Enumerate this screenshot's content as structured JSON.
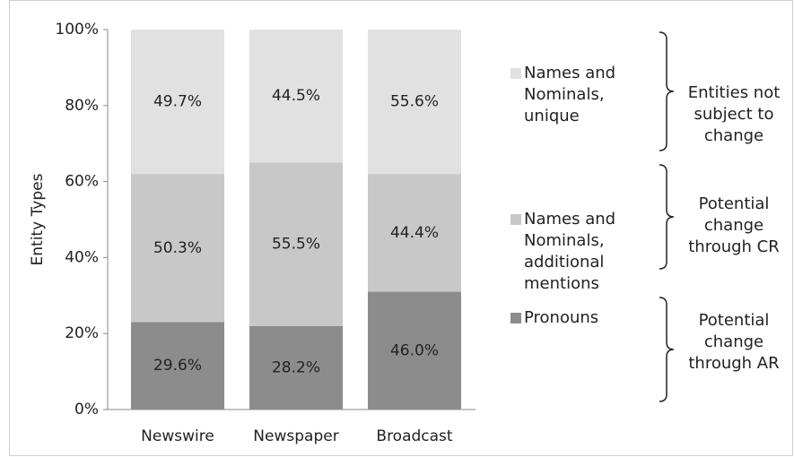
{
  "chart_data": {
    "type": "stacked_bar",
    "y_label": "Entity Types",
    "categories": [
      "Newswire",
      "Newspaper",
      "Broadcast"
    ],
    "series": [
      {
        "name": "Pronouns",
        "color": "#8c8c8c",
        "values": [
          23,
          22,
          31
        ],
        "labels": [
          "29.6%",
          "28.2%",
          "46.0%"
        ]
      },
      {
        "name": "Names and Nominals, additional mentions",
        "color": "#c8c8c8",
        "values": [
          39,
          43,
          31
        ],
        "labels": [
          "50.3%",
          "55.5%",
          "44.4%"
        ]
      },
      {
        "name": "Names and Nominals, unique",
        "color": "#e1e1e1",
        "values": [
          38,
          35,
          38
        ],
        "labels": [
          "49.7%",
          "44.5%",
          "55.6%"
        ]
      }
    ],
    "annotations": [
      "Entities not subject to change",
      "Potential change through CR",
      "Potential change through AR"
    ],
    "ylim": [
      0,
      100
    ],
    "yticks": [
      {
        "value": 0,
        "label": "0%"
      },
      {
        "value": 20,
        "label": "20%"
      },
      {
        "value": 40,
        "label": "40%"
      },
      {
        "value": 60,
        "label": "60%"
      },
      {
        "value": 80,
        "label": "80%"
      },
      {
        "value": 100,
        "label": "100%"
      }
    ],
    "grid": false
  }
}
